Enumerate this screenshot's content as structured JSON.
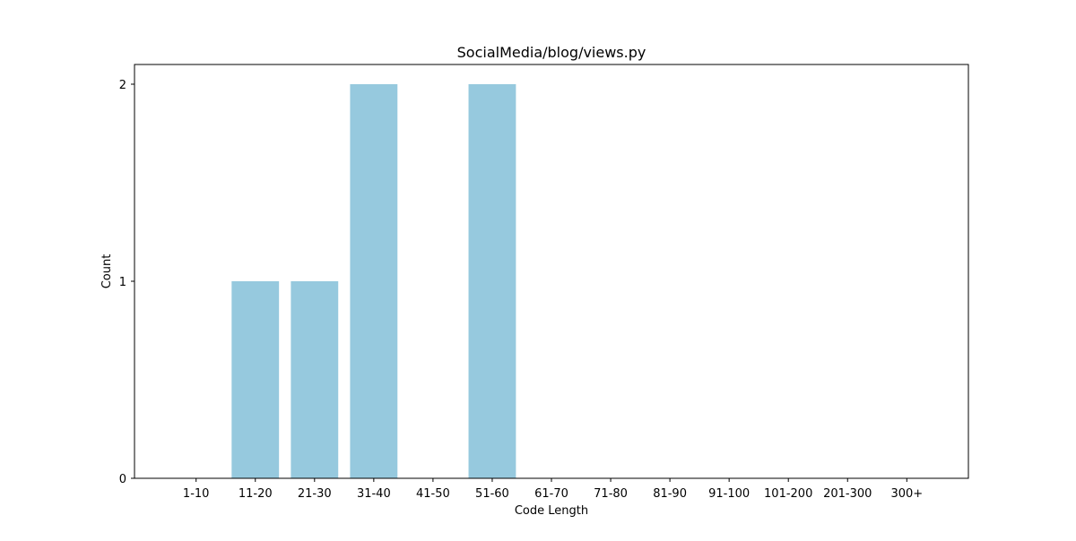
{
  "chart_data": {
    "type": "bar",
    "title": "SocialMedia/blog/views.py",
    "xlabel": "Code Length",
    "ylabel": "Count",
    "categories": [
      "1-10",
      "11-20",
      "21-30",
      "31-40",
      "41-50",
      "51-60",
      "61-70",
      "71-80",
      "81-90",
      "91-100",
      "101-200",
      "201-300",
      "300+"
    ],
    "values": [
      0,
      1,
      1,
      2,
      0,
      2,
      0,
      0,
      0,
      0,
      0,
      0,
      0
    ],
    "yticks": [
      0,
      1,
      2
    ],
    "ylim": [
      0,
      2.1
    ],
    "grid": false,
    "colors": {
      "bar": "#96c9de",
      "axis": "#000000",
      "text": "#000000"
    }
  }
}
